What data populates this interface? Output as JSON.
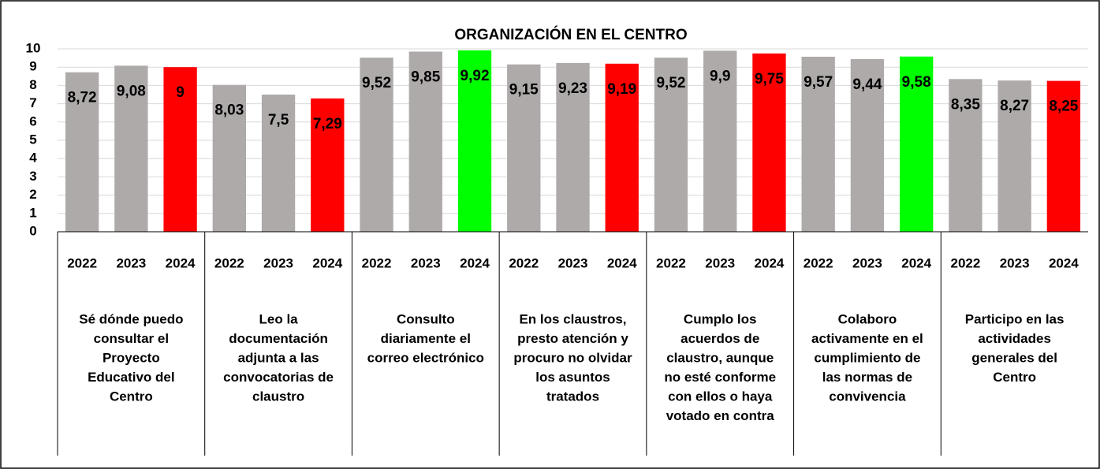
{
  "chart_data": {
    "type": "grouped_bar",
    "title": "ORGANIZACIÓN  EN EL CENTRO",
    "ylim": [
      0,
      10
    ],
    "yticks": [
      0,
      1,
      2,
      3,
      4,
      5,
      6,
      7,
      8,
      9,
      10
    ],
    "grid": true,
    "groups": [
      {
        "label": [
          "Sé dónde puedo",
          "consultar el",
          "Proyecto",
          "Educativo del",
          "Centro"
        ],
        "categories": [
          "2022",
          "2023",
          "2024"
        ],
        "values": [
          8.72,
          9.08,
          9
        ],
        "value_labels": [
          "8,72",
          "9,08",
          "9"
        ],
        "colors": [
          "#aeaaaa",
          "#aeaaaa",
          "#ff0000"
        ]
      },
      {
        "label": [
          "Leo la",
          "documentación",
          "adjunta a las",
          "convocatorias de",
          "claustro"
        ],
        "categories": [
          "2022",
          "2023",
          "2024"
        ],
        "values": [
          8.03,
          7.5,
          7.29
        ],
        "value_labels": [
          "8,03",
          "7,5",
          "7,29"
        ],
        "colors": [
          "#aeaaaa",
          "#aeaaaa",
          "#ff0000"
        ]
      },
      {
        "label": [
          "Consulto",
          "diariamente el",
          "correo electrónico"
        ],
        "categories": [
          "2022",
          "2023",
          "2024"
        ],
        "values": [
          9.52,
          9.85,
          9.92
        ],
        "value_labels": [
          "9,52",
          "9,85",
          "9,92"
        ],
        "colors": [
          "#aeaaaa",
          "#aeaaaa",
          "#00ff00"
        ]
      },
      {
        "label": [
          "En los claustros,",
          "presto atención y",
          "procuro no olvidar",
          "los asuntos",
          "tratados"
        ],
        "categories": [
          "2022",
          "2023",
          "2024"
        ],
        "values": [
          9.15,
          9.23,
          9.19
        ],
        "value_labels": [
          "9,15",
          "9,23",
          "9,19"
        ],
        "colors": [
          "#aeaaaa",
          "#aeaaaa",
          "#ff0000"
        ]
      },
      {
        "label": [
          "Cumplo los",
          "acuerdos de",
          "claustro, aunque",
          "no esté conforme",
          "con ellos o haya",
          "votado en contra"
        ],
        "categories": [
          "2022",
          "2023",
          "2024"
        ],
        "values": [
          9.52,
          9.9,
          9.75
        ],
        "value_labels": [
          "9,52",
          "9,9",
          "9,75"
        ],
        "colors": [
          "#aeaaaa",
          "#aeaaaa",
          "#ff0000"
        ]
      },
      {
        "label": [
          "Colaboro",
          "activamente en el",
          "cumplimiento de",
          "las normas de",
          "convivencia"
        ],
        "categories": [
          "2022",
          "2023",
          "2024"
        ],
        "values": [
          9.57,
          9.44,
          9.58
        ],
        "value_labels": [
          "9,57",
          "9,44",
          "9,58"
        ],
        "colors": [
          "#aeaaaa",
          "#aeaaaa",
          "#00ff00"
        ]
      },
      {
        "label": [
          "Participo en las",
          "actividades",
          "generales del",
          "Centro"
        ],
        "categories": [
          "2022",
          "2023",
          "2024"
        ],
        "values": [
          8.35,
          8.27,
          8.25
        ],
        "value_labels": [
          "8,35",
          "8,27",
          "8,25"
        ],
        "colors": [
          "#aeaaaa",
          "#aeaaaa",
          "#ff0000"
        ]
      }
    ]
  }
}
